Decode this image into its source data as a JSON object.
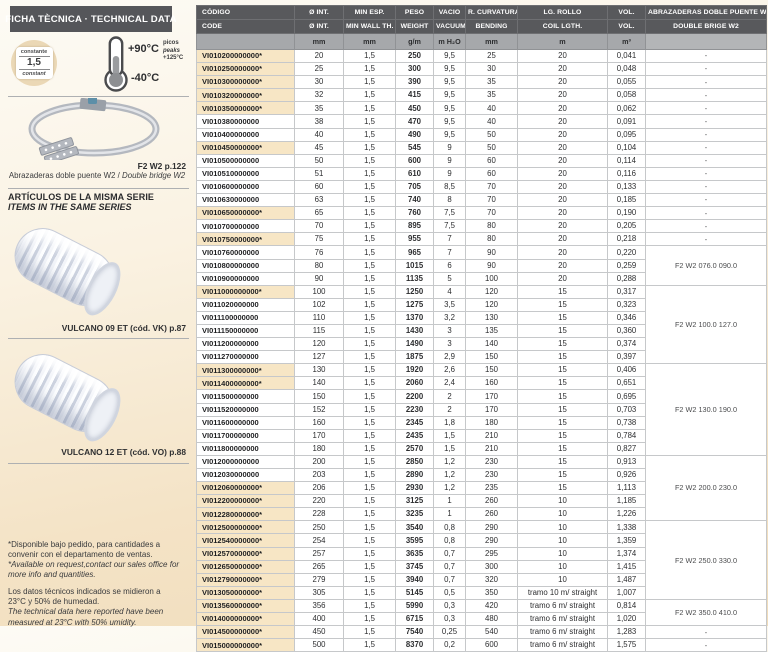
{
  "sidebar": {
    "header": "FICHA TÈCNICA · TECHNICAL DATA",
    "badge": {
      "top": "constante",
      "value": "1,5",
      "bottom": "constant"
    },
    "thermo": {
      "max": "+90°C",
      "min": "-40°C",
      "peak1": "picos",
      "peak2": "peaks",
      "peak3": "+125°C"
    },
    "clamp_ref": "F2 W2 p.122",
    "clamp_caption_es": "Abrazaderas doble puente W2 / ",
    "clamp_caption_en": "Double bridge W2",
    "series_title_es": "ARTÍCULOS DE LA MISMA SERIE",
    "series_title_en": "ITEMS IN THE SAME SERIES",
    "hose1_caption": "VULCANO 09 ET (cód. VK) p.87",
    "hose2_caption": "VULCANO 12 ET (cód. VO) p.88",
    "footnote1_es": "*Disponible bajo pedido, para cantidades a convenir con el departamento de ventas.",
    "footnote1_en": "*Available on request,contact our sales office for more info and quantities.",
    "footnote2_es": "Los datos técnicos indicados se midieron a 23°C y 50% de humedad.",
    "footnote2_en": "The technical data here reported have been measured at 23°C with 50% umidity."
  },
  "table": {
    "headers_es": [
      "CÓDIGO",
      "Ø INT.",
      "MIN ESP.",
      "PESO",
      "VACIO",
      "R. CURVATURA",
      "LG. ROLLO",
      "VOL.",
      "ABRAZADERAS DOBLE PUENTE W2"
    ],
    "headers_en": [
      "CODE",
      "Ø INT.",
      "MIN WALL TH.",
      "WEIGHT",
      "VACUUM",
      "BENDING",
      "COIL LGTH.",
      "VOL.",
      "DOUBLE BRIGE W2"
    ],
    "units": [
      "",
      "mm",
      "mm",
      "g/m",
      "m H₂O",
      "mm",
      "m",
      "m³",
      ""
    ],
    "rows": [
      [
        "VI010200000000*",
        "20",
        "1,5",
        "250",
        "9,5",
        "25",
        "20",
        "0,041"
      ],
      [
        "VI010250000000*",
        "25",
        "1,5",
        "300",
        "9,5",
        "30",
        "20",
        "0,048"
      ],
      [
        "VI010300000000*",
        "30",
        "1,5",
        "390",
        "9,5",
        "35",
        "20",
        "0,055"
      ],
      [
        "VI010320000000*",
        "32",
        "1,5",
        "415",
        "9,5",
        "35",
        "20",
        "0,058"
      ],
      [
        "VI010350000000*",
        "35",
        "1,5",
        "450",
        "9,5",
        "40",
        "20",
        "0,062"
      ],
      [
        "VI010380000000",
        "38",
        "1,5",
        "470",
        "9,5",
        "40",
        "20",
        "0,091"
      ],
      [
        "VI010400000000",
        "40",
        "1,5",
        "490",
        "9,5",
        "50",
        "20",
        "0,095"
      ],
      [
        "VI010450000000*",
        "45",
        "1,5",
        "545",
        "9",
        "50",
        "20",
        "0,104"
      ],
      [
        "VI010500000000",
        "50",
        "1,5",
        "600",
        "9",
        "60",
        "20",
        "0,114"
      ],
      [
        "VI010510000000",
        "51",
        "1,5",
        "610",
        "9",
        "60",
        "20",
        "0,116"
      ],
      [
        "VI010600000000",
        "60",
        "1,5",
        "705",
        "8,5",
        "70",
        "20",
        "0,133"
      ],
      [
        "VI010630000000",
        "63",
        "1,5",
        "740",
        "8",
        "70",
        "20",
        "0,185"
      ],
      [
        "VI010650000000*",
        "65",
        "1,5",
        "760",
        "7,5",
        "70",
        "20",
        "0,190"
      ],
      [
        "VI010700000000",
        "70",
        "1,5",
        "895",
        "7,5",
        "80",
        "20",
        "0,205"
      ],
      [
        "VI010750000000*",
        "75",
        "1,5",
        "955",
        "7",
        "80",
        "20",
        "0,218"
      ],
      [
        "VI010760000000",
        "76",
        "1,5",
        "965",
        "7",
        "90",
        "20",
        "0,220"
      ],
      [
        "VI010800000000",
        "80",
        "1,5",
        "1015",
        "6",
        "90",
        "20",
        "0,259"
      ],
      [
        "VI010900000000",
        "90",
        "1,5",
        "1135",
        "5",
        "100",
        "20",
        "0,288"
      ],
      [
        "VI011000000000*",
        "100",
        "1,5",
        "1250",
        "4",
        "120",
        "15",
        "0,317"
      ],
      [
        "VI011020000000",
        "102",
        "1,5",
        "1275",
        "3,5",
        "120",
        "15",
        "0,323"
      ],
      [
        "VI011100000000",
        "110",
        "1,5",
        "1370",
        "3,2",
        "130",
        "15",
        "0,346"
      ],
      [
        "VI011150000000",
        "115",
        "1,5",
        "1430",
        "3",
        "135",
        "15",
        "0,360"
      ],
      [
        "VI011200000000",
        "120",
        "1,5",
        "1490",
        "3",
        "140",
        "15",
        "0,374"
      ],
      [
        "VI011270000000",
        "127",
        "1,5",
        "1875",
        "2,9",
        "150",
        "15",
        "0,397"
      ],
      [
        "VI011300000000*",
        "130",
        "1,5",
        "1920",
        "2,6",
        "150",
        "15",
        "0,406"
      ],
      [
        "VI011400000000*",
        "140",
        "1,5",
        "2060",
        "2,4",
        "160",
        "15",
        "0,651"
      ],
      [
        "VI011500000000",
        "150",
        "1,5",
        "2200",
        "2",
        "170",
        "15",
        "0,695"
      ],
      [
        "VI011520000000",
        "152",
        "1,5",
        "2230",
        "2",
        "170",
        "15",
        "0,703"
      ],
      [
        "VI011600000000",
        "160",
        "1,5",
        "2345",
        "1,8",
        "180",
        "15",
        "0,738"
      ],
      [
        "VI011700000000",
        "170",
        "1,5",
        "2435",
        "1,5",
        "210",
        "15",
        "0,784"
      ],
      [
        "VI011800000000",
        "180",
        "1,5",
        "2570",
        "1,5",
        "210",
        "15",
        "0,827"
      ],
      [
        "VI012000000000",
        "200",
        "1,5",
        "2850",
        "1,2",
        "230",
        "15",
        "0,913"
      ],
      [
        "VI012030000000",
        "203",
        "1,5",
        "2890",
        "1,2",
        "230",
        "15",
        "0,926"
      ],
      [
        "VI012060000000*",
        "206",
        "1,5",
        "2930",
        "1,2",
        "235",
        "15",
        "1,113"
      ],
      [
        "VI012200000000*",
        "220",
        "1,5",
        "3125",
        "1",
        "260",
        "10",
        "1,185"
      ],
      [
        "VI012280000000*",
        "228",
        "1,5",
        "3235",
        "1",
        "260",
        "10",
        "1,226"
      ],
      [
        "VI012500000000*",
        "250",
        "1,5",
        "3540",
        "0,8",
        "290",
        "10",
        "1,338"
      ],
      [
        "VI012540000000*",
        "254",
        "1,5",
        "3595",
        "0,8",
        "290",
        "10",
        "1,359"
      ],
      [
        "VI012570000000*",
        "257",
        "1,5",
        "3635",
        "0,7",
        "295",
        "10",
        "1,374"
      ],
      [
        "VI012650000000*",
        "265",
        "1,5",
        "3745",
        "0,7",
        "300",
        "10",
        "1,415"
      ],
      [
        "VI012790000000*",
        "279",
        "1,5",
        "3940",
        "0,7",
        "320",
        "10",
        "1,487"
      ],
      [
        "VI013050000000*",
        "305",
        "1,5",
        "5145",
        "0,5",
        "350",
        "tramo 10 m/ straight",
        "1,007"
      ],
      [
        "VI013560000000*",
        "356",
        "1,5",
        "5990",
        "0,3",
        "420",
        "tramo 6 m/ straight",
        "0,814"
      ],
      [
        "VI014000000000*",
        "400",
        "1,5",
        "6715",
        "0,3",
        "480",
        "tramo 6 m/ straight",
        "1,020"
      ],
      [
        "VI014500000000*",
        "450",
        "1,5",
        "7540",
        "0,25",
        "540",
        "tramo 6 m/ straight",
        "1,283"
      ],
      [
        "VI015000000000*",
        "500",
        "1,5",
        "8370",
        "0,2",
        "600",
        "tramo 6 m/ straight",
        "1,575"
      ]
    ],
    "w2_groups": [
      {
        "count": 1,
        "label": "-"
      },
      {
        "count": 1,
        "label": "-"
      },
      {
        "count": 1,
        "label": "-"
      },
      {
        "count": 1,
        "label": "-"
      },
      {
        "count": 1,
        "label": "-"
      },
      {
        "count": 1,
        "label": "-"
      },
      {
        "count": 1,
        "label": "-"
      },
      {
        "count": 1,
        "label": "-"
      },
      {
        "count": 1,
        "label": "-"
      },
      {
        "count": 1,
        "label": "-"
      },
      {
        "count": 1,
        "label": "-"
      },
      {
        "count": 1,
        "label": "-"
      },
      {
        "count": 1,
        "label": "-"
      },
      {
        "count": 1,
        "label": "-"
      },
      {
        "count": 1,
        "label": "-"
      },
      {
        "count": 3,
        "label": "F2 W2 076.0 090.0"
      },
      {
        "count": 6,
        "label": "F2 W2 100.0 127.0"
      },
      {
        "count": 7,
        "label": "F2 W2 130.0 190.0"
      },
      {
        "count": 5,
        "label": "F2 W2 200.0 230.0"
      },
      {
        "count": 6,
        "label": "F2 W2 250.0 330.0"
      },
      {
        "count": 2,
        "label": "F2 W2 350.0 410.0"
      },
      {
        "count": 1,
        "label": "-"
      },
      {
        "count": 1,
        "label": "-"
      }
    ],
    "asterisk_note": "*"
  },
  "colors": {
    "header_bg": "#58595c",
    "units_bg": "#a6a8ab",
    "highlight_beige": "#f7e6c5",
    "page_beige": "#f0dcba",
    "bar_dark": "#55565a"
  }
}
